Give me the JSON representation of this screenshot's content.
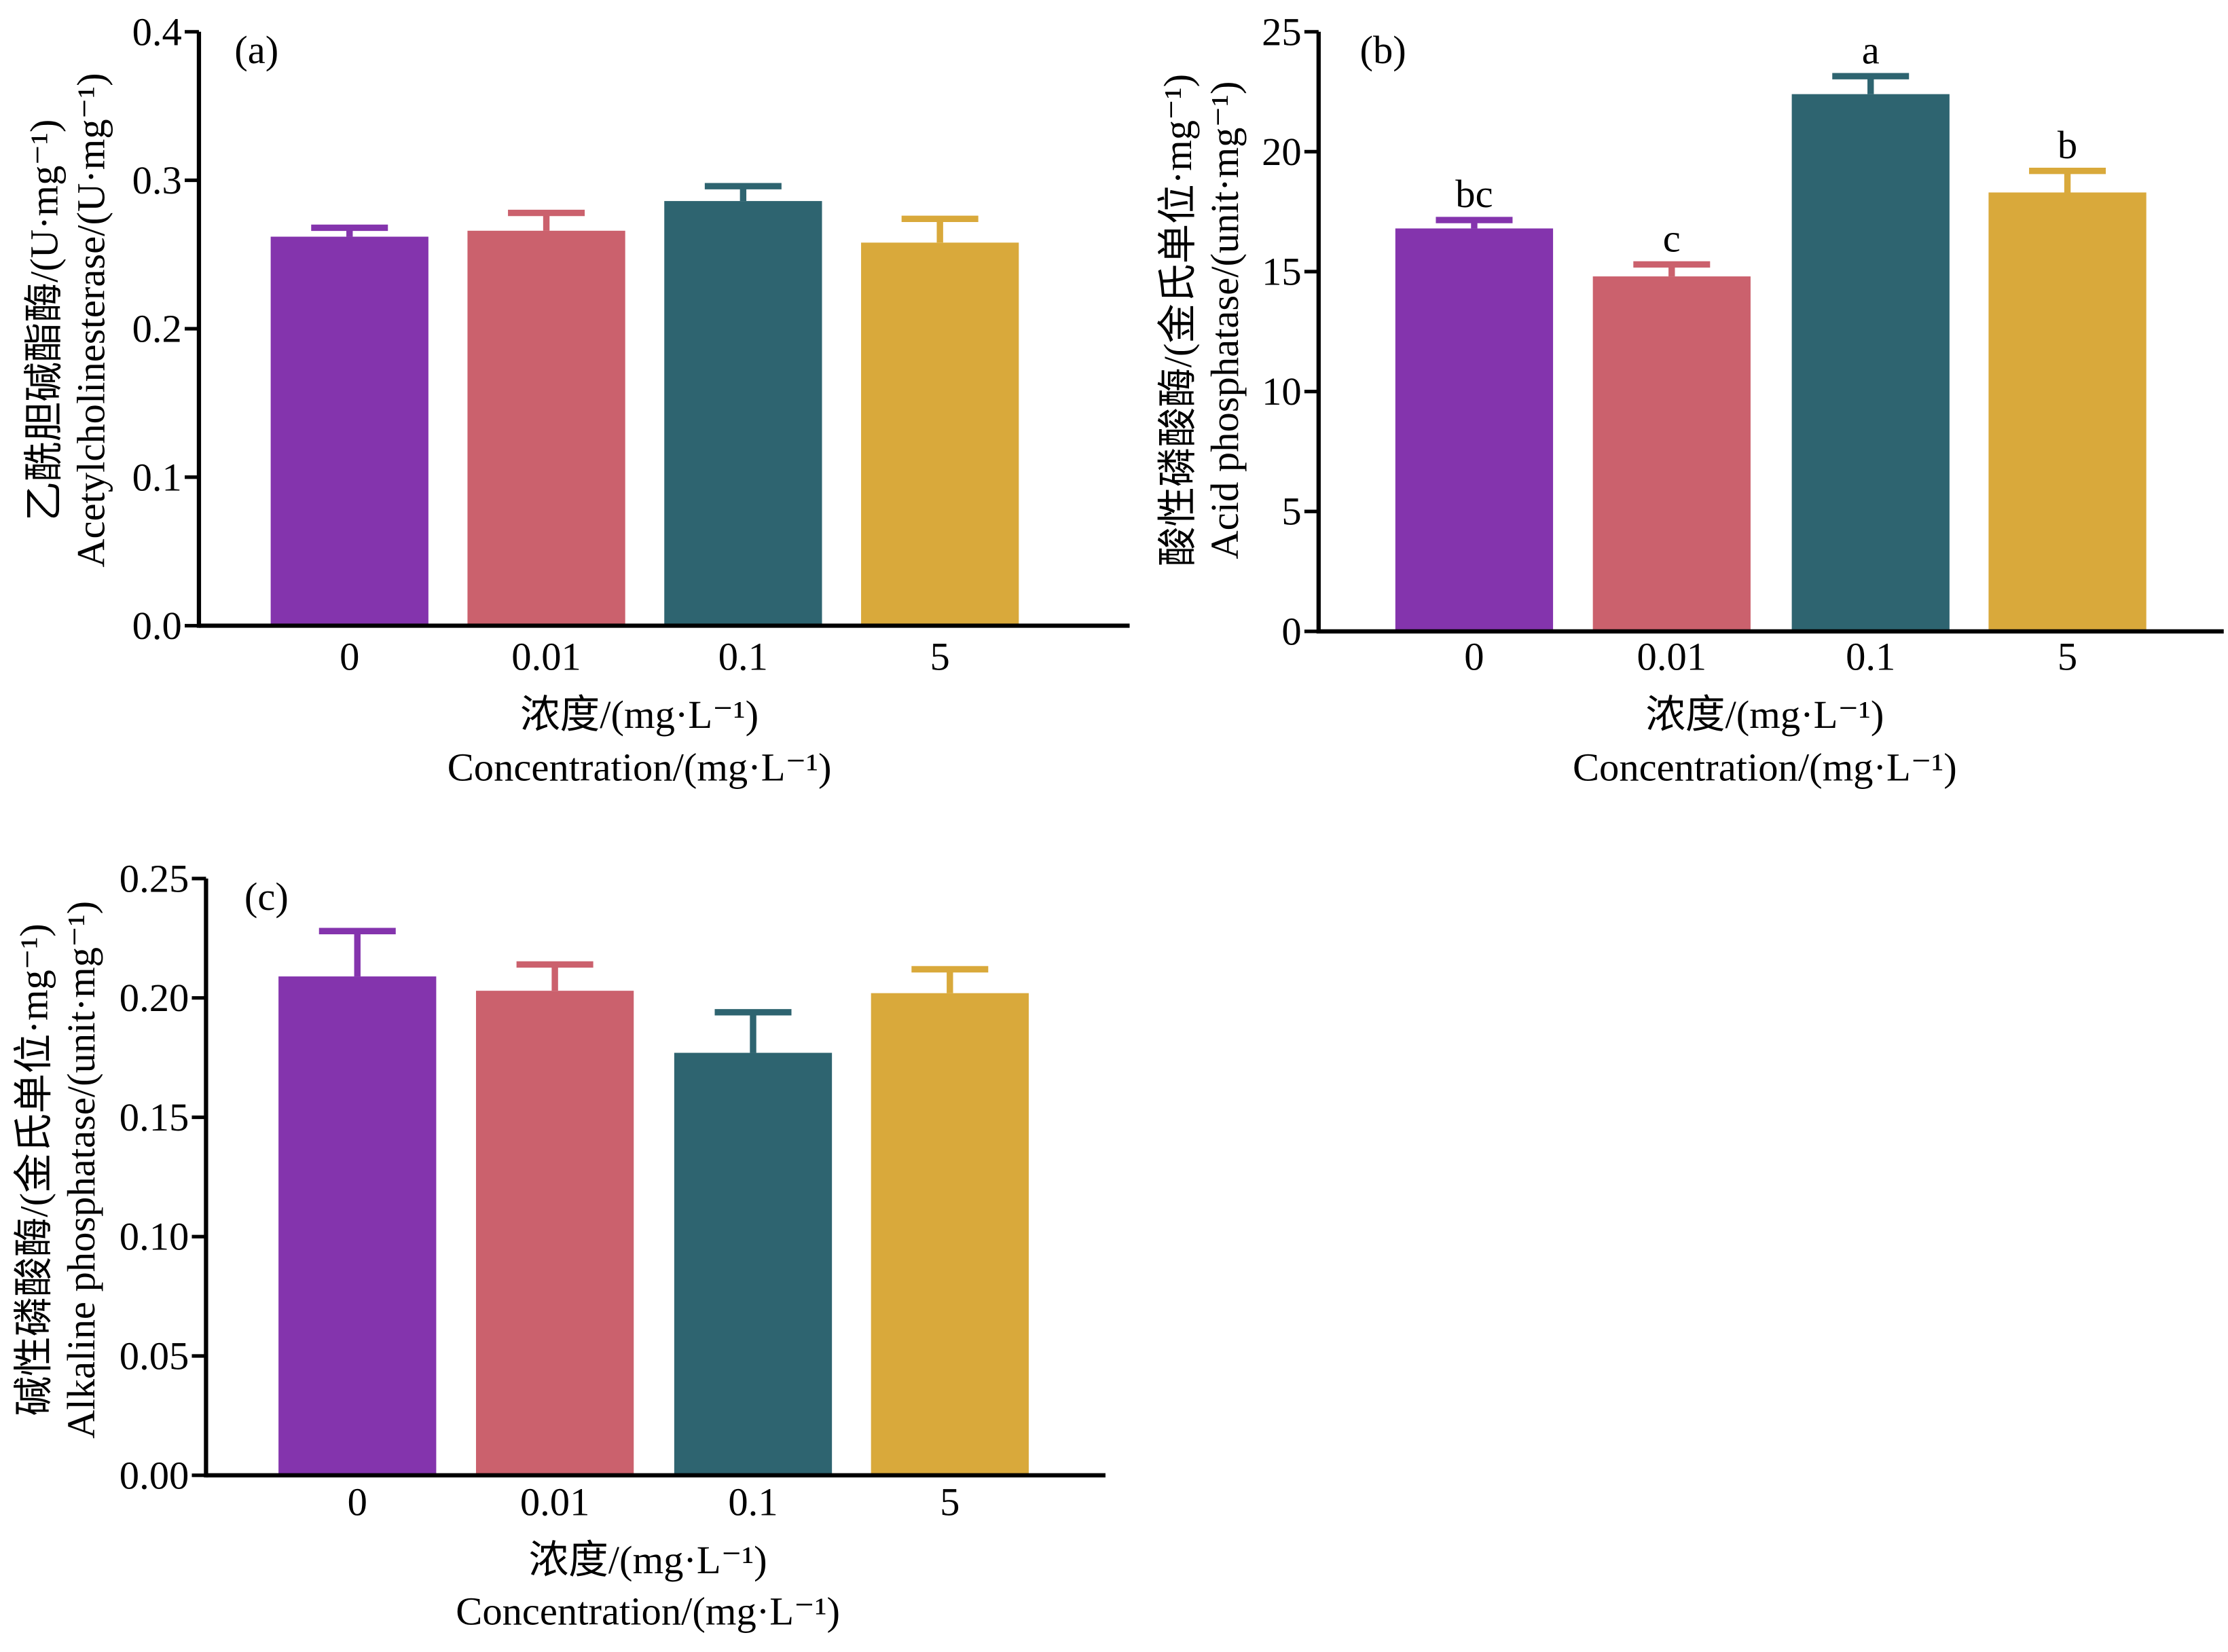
{
  "chart_data": [
    {
      "type": "bar",
      "panel_label": "(a)",
      "categories": [
        "0",
        "0.01",
        "0.1",
        "5"
      ],
      "series": [
        {
          "values": [
            0.262,
            0.266,
            0.286,
            0.258
          ],
          "error": [
            0.006,
            0.012,
            0.01,
            0.016
          ]
        }
      ],
      "colors": [
        "#8434AD",
        "#CB616D",
        "#2E6470",
        "#D9A93B"
      ],
      "ylim": [
        0,
        0.4
      ],
      "yticks": [
        "0.0",
        "0.1",
        "0.2",
        "0.3",
        "0.4"
      ],
      "ylabel": [
        "乙酰胆碱酯酶/(U·mg⁻¹)",
        "Acetylcholinesterase/(U·mg⁻¹)"
      ],
      "xlabel": [
        "浓度/(mg·L⁻¹)",
        "Concentration/(mg·L⁻¹)"
      ],
      "grid": false
    },
    {
      "type": "bar",
      "panel_label": "(b)",
      "categories": [
        "0",
        "0.01",
        "0.1",
        "5"
      ],
      "series": [
        {
          "values": [
            16.8,
            14.8,
            22.4,
            18.3
          ],
          "error": [
            0.35,
            0.5,
            0.75,
            0.9
          ]
        }
      ],
      "significance": [
        "bc",
        "c",
        "a",
        "b"
      ],
      "colors": [
        "#8434AD",
        "#CB616D",
        "#2E6470",
        "#D9A93B"
      ],
      "ylim": [
        0,
        25
      ],
      "yticks": [
        "0",
        "5",
        "10",
        "15",
        "20",
        "25"
      ],
      "ylabel": [
        "酸性磷酸酶/(金氏单位·mg⁻¹)",
        "Acid phosphatase/(unit·mg⁻¹)"
      ],
      "xlabel": [
        "浓度/(mg·L⁻¹)",
        "Concentration/(mg·L⁻¹)"
      ],
      "grid": false
    },
    {
      "type": "bar",
      "panel_label": "(c)",
      "categories": [
        "0",
        "0.01",
        "0.1",
        "5"
      ],
      "series": [
        {
          "values": [
            0.209,
            0.203,
            0.177,
            0.202
          ],
          "error": [
            0.019,
            0.011,
            0.017,
            0.01
          ]
        }
      ],
      "colors": [
        "#8434AD",
        "#CB616D",
        "#2E6470",
        "#D9A93B"
      ],
      "ylim": [
        0,
        0.25
      ],
      "yticks": [
        "0.00",
        "0.05",
        "0.10",
        "0.15",
        "0.20",
        "0.25"
      ],
      "ylabel": [
        "碱性磷酸酶/(金氏单位·mg⁻¹)",
        "Alkaline phosphatase/(unit·mg⁻¹)"
      ],
      "xlabel": [
        "浓度/(mg·L⁻¹)",
        "Concentration/(mg·L⁻¹)"
      ],
      "grid": false
    }
  ]
}
